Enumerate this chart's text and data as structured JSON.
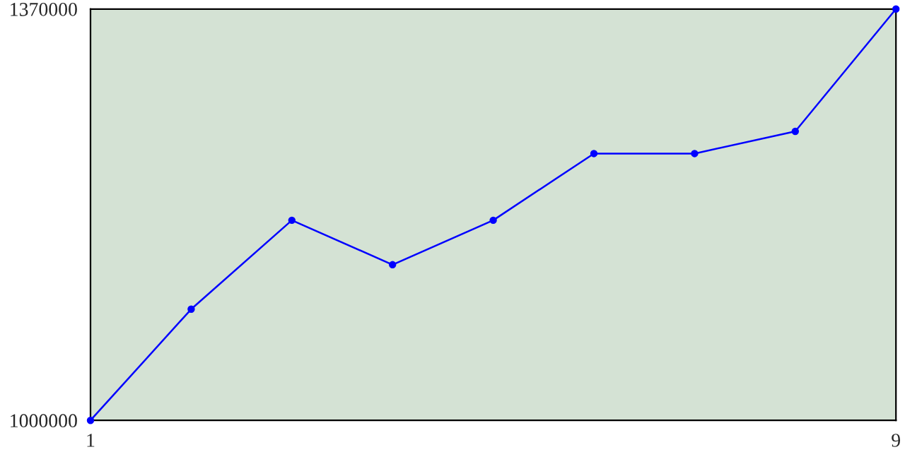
{
  "chart_data": {
    "type": "line",
    "x": [
      1,
      2,
      3,
      4,
      5,
      6,
      7,
      8,
      9
    ],
    "series": [
      {
        "color": "#0000ff",
        "values": [
          1000000,
          1100000,
          1180000,
          1140000,
          1180000,
          1240000,
          1240000,
          1260000,
          1370000
        ]
      }
    ],
    "xlim": [
      1,
      9
    ],
    "ylim": [
      1000000,
      1370000
    ],
    "xticks": [
      1,
      9
    ],
    "yticks": [
      1000000,
      1370000
    ],
    "marker": "circle",
    "line_style": "solid"
  }
}
